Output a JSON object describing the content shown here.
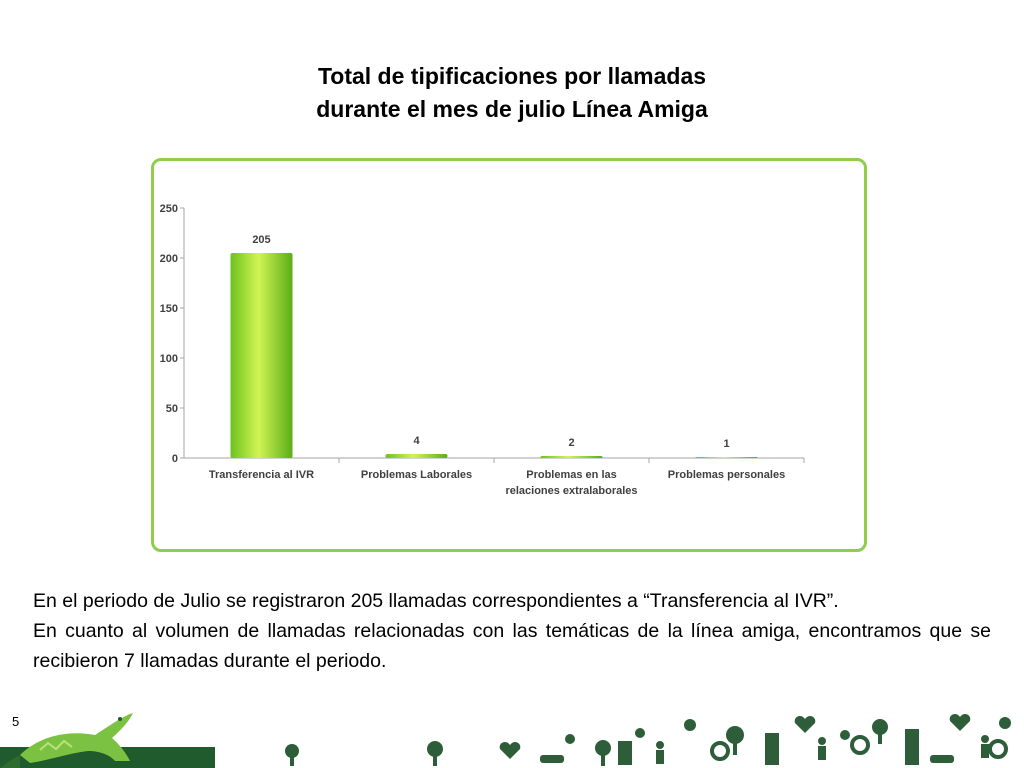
{
  "slide": {
    "title_line1": "Total de tipificaciones por llamadas",
    "title_line2": "durante el mes de julio  Línea Amiga",
    "body_line1": "En el periodo de Julio se registraron 205 llamadas correspondientes a “Transferencia al IVR”.",
    "body_line2": "En cuanto al volumen de llamadas relacionadas con las temáticas de la línea amiga, encontramos que se recibieron 7 llamadas durante el periodo.",
    "page_number": "5"
  },
  "colors": {
    "frame": "#8fce4a",
    "bar_light": "#c8f050",
    "bar_dark": "#5fb31e",
    "footer_green": "#1f5b2c"
  },
  "footer": {
    "icons": [
      "iguana-logo",
      "tree-icon",
      "heart-icon",
      "flower-icon",
      "people-icon",
      "car-icon",
      "building-icon"
    ]
  },
  "chart_data": {
    "type": "bar",
    "categories": [
      [
        "Transferencia al IVR"
      ],
      [
        "Problemas Laborales"
      ],
      [
        "Problemas en las",
        "relaciones extralaborales"
      ],
      [
        "Problemas personales"
      ]
    ],
    "values": [
      205,
      4,
      2,
      1
    ],
    "data_labels": [
      "205",
      "4",
      "2",
      "1"
    ],
    "ylim": [
      0,
      250
    ],
    "yticks": [
      0,
      50,
      100,
      150,
      200,
      250
    ],
    "grid": false,
    "legend": "none"
  }
}
